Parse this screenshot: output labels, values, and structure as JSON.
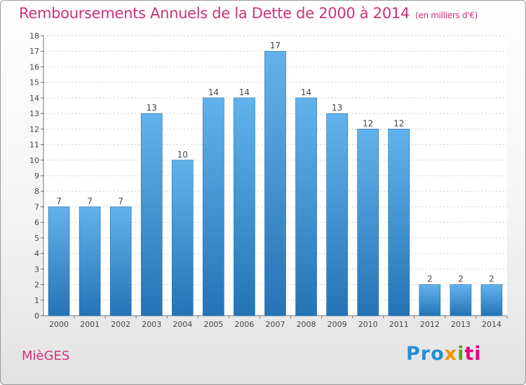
{
  "title": "Remboursements Annuels de la Dette de 2000 à 2014",
  "unit_note": "(en milliers d'€)",
  "commune": "MièGES",
  "logo": {
    "p1": "Pro",
    "x": "x",
    "i": "i",
    "ti": "ti"
  },
  "colors": {
    "bar_light": "#62b3ec",
    "bar_dark": "#2474b6",
    "title": "#d0307a"
  },
  "chart_data": {
    "type": "bar",
    "title": "Remboursements Annuels de la Dette de 2000 à 2014",
    "ylabel": "(en milliers d'€)",
    "categories": [
      "2000",
      "2001",
      "2002",
      "2003",
      "2004",
      "2005",
      "2006",
      "2007",
      "2008",
      "2009",
      "2010",
      "2011",
      "2012",
      "2013",
      "2014"
    ],
    "values": [
      7,
      7,
      7,
      13,
      10,
      14,
      14,
      17,
      14,
      13,
      12,
      12,
      2,
      2,
      2
    ],
    "ylim": [
      0,
      18
    ],
    "yticks": [
      0,
      1,
      2,
      3,
      4,
      5,
      6,
      7,
      8,
      9,
      10,
      11,
      12,
      13,
      14,
      15,
      16,
      17,
      18
    ],
    "grid": true,
    "legend": "none"
  }
}
